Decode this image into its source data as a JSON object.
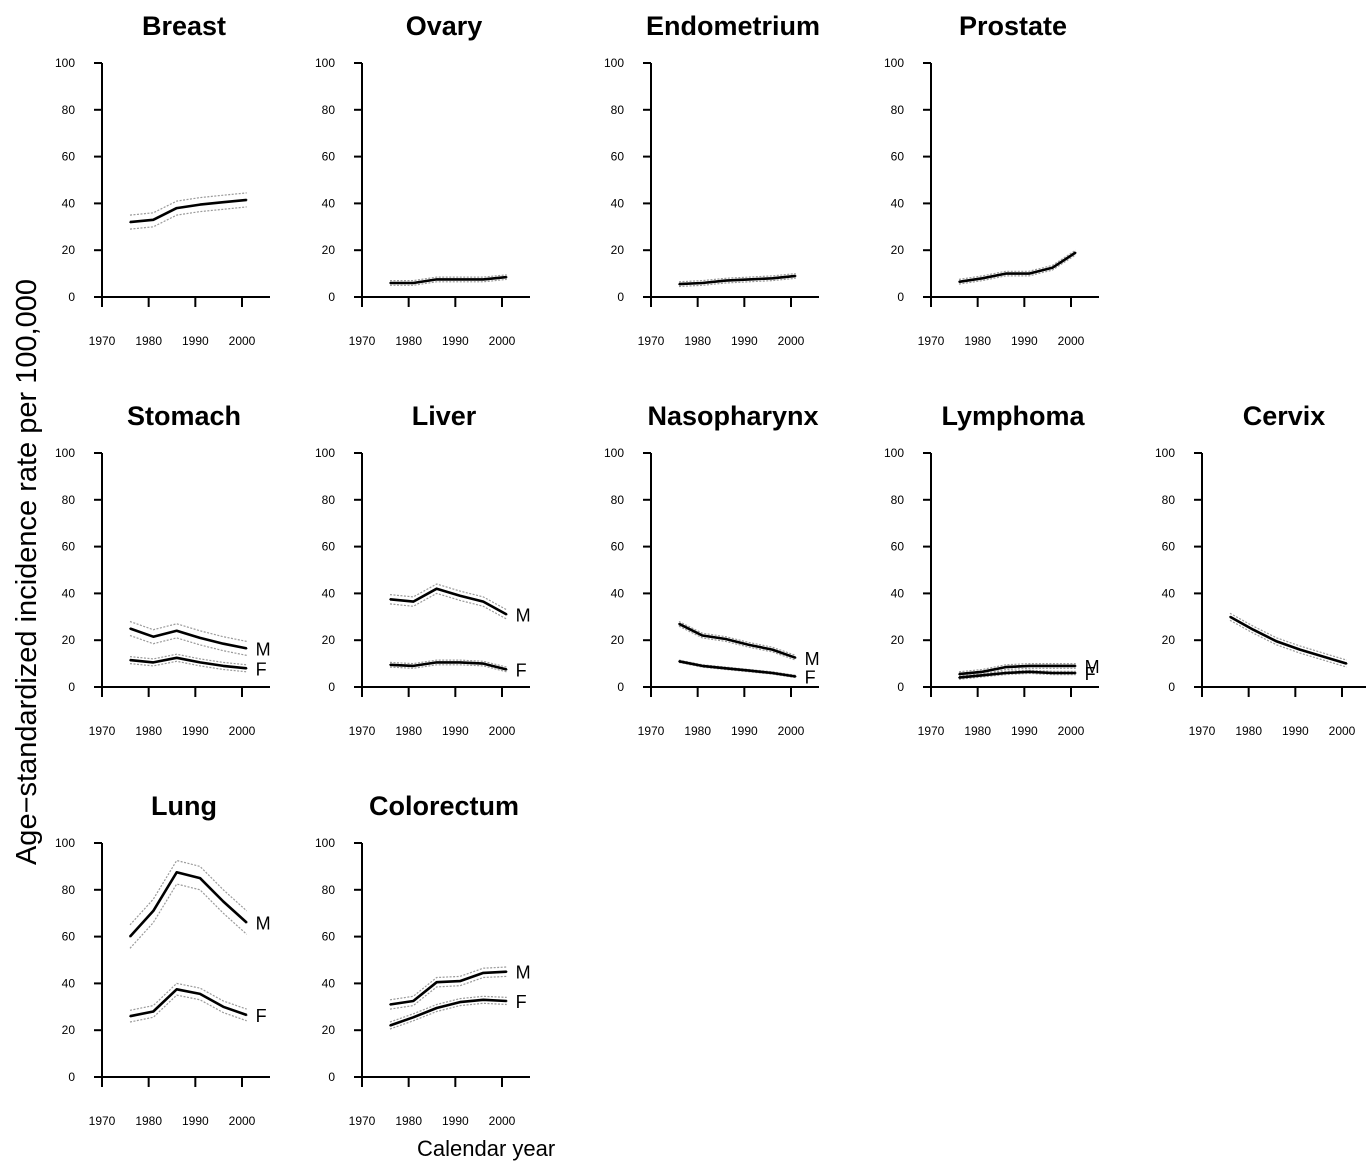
{
  "y_axis_label": "Age−standardized incidence rate per 100,000",
  "x_axis_label": "Calendar year",
  "chart_data": [
    {
      "type": "line",
      "title": "Breast",
      "xlim": [
        1970,
        2002
      ],
      "ylim": [
        0,
        100
      ],
      "xticks": [
        "1970",
        "1980",
        "1990",
        "2000"
      ],
      "yticks": [
        "0",
        "20",
        "40",
        "60",
        "80",
        "100"
      ],
      "series": [
        {
          "x": [
            1976,
            1981,
            1986,
            1991,
            1996,
            2001
          ],
          "values": [
            32,
            33,
            38,
            39.5,
            40.5,
            41.5
          ],
          "band": 3
        }
      ]
    },
    {
      "type": "line",
      "title": "Ovary",
      "xlim": [
        1970,
        2002
      ],
      "ylim": [
        0,
        100
      ],
      "xticks": [
        "1970",
        "1980",
        "1990",
        "2000"
      ],
      "yticks": [
        "0",
        "20",
        "40",
        "60",
        "80",
        "100"
      ],
      "series": [
        {
          "x": [
            1976,
            1981,
            1986,
            1991,
            1996,
            2001
          ],
          "values": [
            6,
            6,
            7.5,
            7.5,
            7.5,
            8.5
          ],
          "band": 1
        }
      ]
    },
    {
      "type": "line",
      "title": "Endometrium",
      "xlim": [
        1970,
        2002
      ],
      "ylim": [
        0,
        100
      ],
      "xticks": [
        "1970",
        "1980",
        "1990",
        "2000"
      ],
      "yticks": [
        "0",
        "20",
        "40",
        "60",
        "80",
        "100"
      ],
      "series": [
        {
          "x": [
            1976,
            1981,
            1986,
            1991,
            1996,
            2001
          ],
          "values": [
            5.5,
            6,
            7,
            7.5,
            8,
            9
          ],
          "band": 1
        }
      ]
    },
    {
      "type": "line",
      "title": "Prostate",
      "xlim": [
        1970,
        2002
      ],
      "ylim": [
        0,
        100
      ],
      "xticks": [
        "1970",
        "1980",
        "1990",
        "2000"
      ],
      "yticks": [
        "0",
        "20",
        "40",
        "60",
        "80",
        "100"
      ],
      "series": [
        {
          "x": [
            1976,
            1981,
            1986,
            1991,
            1996,
            2001
          ],
          "values": [
            6.5,
            8,
            10,
            10,
            12.5,
            19
          ],
          "band": 1
        }
      ]
    },
    {
      "type": "line",
      "title": "Stomach",
      "xlim": [
        1970,
        2002
      ],
      "ylim": [
        0,
        100
      ],
      "xticks": [
        "1970",
        "1980",
        "1990",
        "2000"
      ],
      "yticks": [
        "0",
        "20",
        "40",
        "60",
        "80",
        "100"
      ],
      "series": [
        {
          "name": "M",
          "x": [
            1976,
            1981,
            1986,
            1991,
            1996,
            2001
          ],
          "values": [
            25,
            21.5,
            24,
            21,
            18.5,
            16.5
          ],
          "band": 3
        },
        {
          "name": "F",
          "x": [
            1976,
            1981,
            1986,
            1991,
            1996,
            2001
          ],
          "values": [
            11.5,
            10.5,
            12.5,
            10.5,
            9,
            8
          ],
          "band": 1.5
        }
      ]
    },
    {
      "type": "line",
      "title": "Liver",
      "xlim": [
        1970,
        2002
      ],
      "ylim": [
        0,
        100
      ],
      "xticks": [
        "1970",
        "1980",
        "1990",
        "2000"
      ],
      "yticks": [
        "0",
        "20",
        "40",
        "60",
        "80",
        "100"
      ],
      "series": [
        {
          "name": "M",
          "x": [
            1976,
            1981,
            1986,
            1991,
            1996,
            2001
          ],
          "values": [
            37.5,
            36.5,
            42,
            39,
            36.5,
            31
          ],
          "band": 2
        },
        {
          "name": "F",
          "x": [
            1976,
            1981,
            1986,
            1991,
            1996,
            2001
          ],
          "values": [
            9.5,
            9,
            10.5,
            10.5,
            10,
            7.5
          ],
          "band": 1
        }
      ]
    },
    {
      "type": "line",
      "title": "Nasopharynx",
      "xlim": [
        1970,
        2002
      ],
      "ylim": [
        0,
        100
      ],
      "xticks": [
        "1970",
        "1980",
        "1990",
        "2000"
      ],
      "yticks": [
        "0",
        "20",
        "40",
        "60",
        "80",
        "100"
      ],
      "series": [
        {
          "name": "M",
          "x": [
            1976,
            1981,
            1986,
            1991,
            1996,
            2001
          ],
          "values": [
            27,
            22,
            20.5,
            18,
            16,
            12.5
          ],
          "band": 1
        },
        {
          "name": "F",
          "x": [
            1976,
            1981,
            1986,
            1991,
            1996,
            2001
          ],
          "values": [
            11,
            9,
            8,
            7,
            6,
            4.5
          ],
          "band": 0.5
        }
      ]
    },
    {
      "type": "line",
      "title": "Lymphoma",
      "xlim": [
        1970,
        2002
      ],
      "ylim": [
        0,
        100
      ],
      "xticks": [
        "1970",
        "1980",
        "1990",
        "2000"
      ],
      "yticks": [
        "0",
        "20",
        "40",
        "60",
        "80",
        "100"
      ],
      "series": [
        {
          "name": "M",
          "x": [
            1976,
            1981,
            1986,
            1991,
            1996,
            2001
          ],
          "values": [
            5.5,
            6.5,
            8.5,
            9,
            9,
            9
          ],
          "band": 1
        },
        {
          "name": "F",
          "x": [
            1976,
            1981,
            1986,
            1991,
            1996,
            2001
          ],
          "values": [
            4,
            5,
            6,
            6.5,
            6,
            6
          ],
          "band": 0.7
        }
      ]
    },
    {
      "type": "line",
      "title": "Cervix",
      "xlim": [
        1970,
        2002
      ],
      "ylim": [
        0,
        100
      ],
      "xticks": [
        "1970",
        "1980",
        "1990",
        "2000"
      ],
      "yticks": [
        "0",
        "20",
        "40",
        "60",
        "80",
        "100"
      ],
      "series": [
        {
          "x": [
            1976,
            1981,
            1986,
            1991,
            1996,
            2001
          ],
          "values": [
            30,
            24.5,
            19.5,
            16,
            13,
            10
          ],
          "band": 1.5
        }
      ]
    },
    {
      "type": "line",
      "title": "Lung",
      "xlim": [
        1970,
        2002
      ],
      "ylim": [
        0,
        100
      ],
      "xticks": [
        "1970",
        "1980",
        "1990",
        "2000"
      ],
      "yticks": [
        "0",
        "20",
        "40",
        "60",
        "80",
        "100"
      ],
      "series": [
        {
          "name": "M",
          "x": [
            1976,
            1981,
            1986,
            1991,
            1996,
            2001
          ],
          "values": [
            60,
            71,
            87.5,
            85,
            75,
            66
          ],
          "band": 5
        },
        {
          "name": "F",
          "x": [
            1976,
            1981,
            1986,
            1991,
            1996,
            2001
          ],
          "values": [
            26,
            28,
            37.5,
            35.5,
            30,
            26.5
          ],
          "band": 2.5
        }
      ]
    },
    {
      "type": "line",
      "title": "Colorectum",
      "xlim": [
        1970,
        2002
      ],
      "ylim": [
        0,
        100
      ],
      "xticks": [
        "1970",
        "1980",
        "1990",
        "2000"
      ],
      "yticks": [
        "0",
        "20",
        "40",
        "60",
        "80",
        "100"
      ],
      "series": [
        {
          "name": "M",
          "x": [
            1976,
            1981,
            1986,
            1991,
            1996,
            2001
          ],
          "values": [
            31,
            32.5,
            40.5,
            41,
            44.5,
            45
          ],
          "band": 2
        },
        {
          "name": "F",
          "x": [
            1976,
            1981,
            1986,
            1991,
            1996,
            2001
          ],
          "values": [
            22,
            25.5,
            29.5,
            32,
            33,
            32.5
          ],
          "band": 1.5
        }
      ]
    }
  ]
}
